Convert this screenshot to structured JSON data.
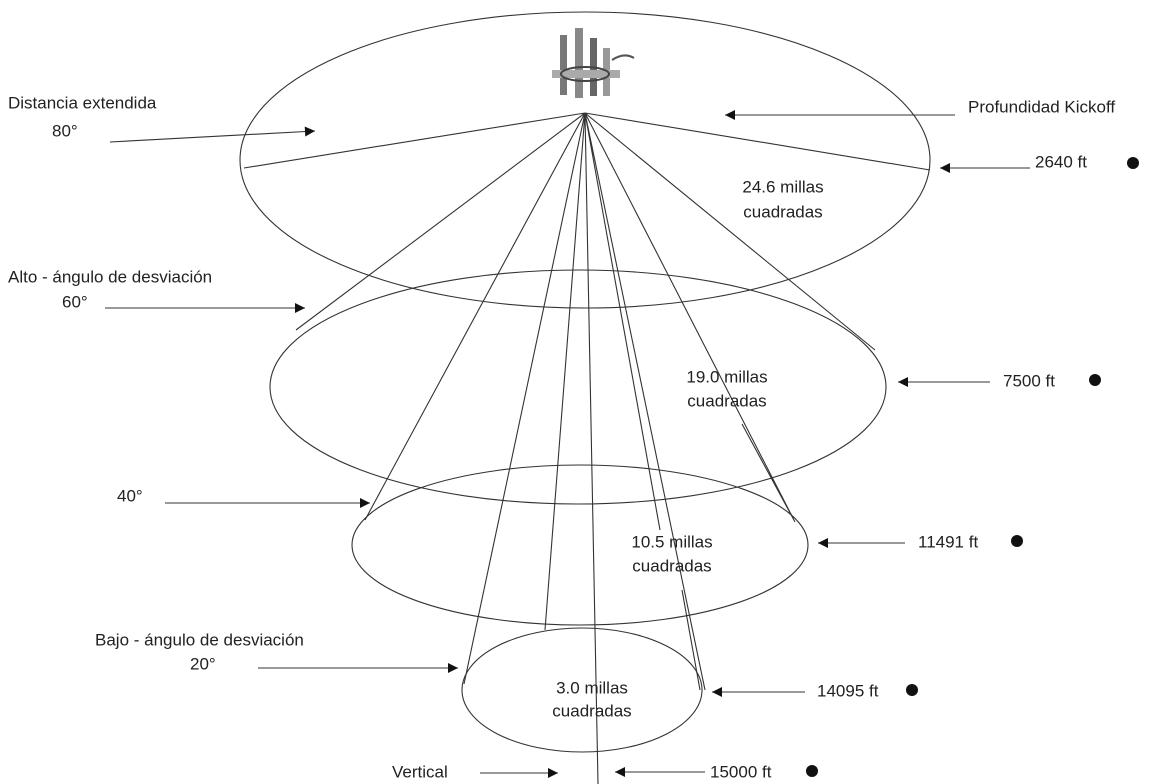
{
  "angles": [
    {
      "label": "Distancia extendida",
      "angle": "80°"
    },
    {
      "label": "Alto - ángulo de desviación",
      "angle": "60°"
    },
    {
      "angle": "40°"
    },
    {
      "label": "Bajo - ángulo de desviación",
      "angle": "20°"
    },
    {
      "label": "Vertical"
    }
  ],
  "kickoff": "Profundidad Kickoff",
  "depths": [
    "2640 ft",
    "7500 ft",
    "11491 ft",
    "14095 ft",
    "15000 ft"
  ],
  "areas": [
    {
      "line1": "24.6 millas",
      "line2": "cuadradas"
    },
    {
      "line1": "19.0 millas",
      "line2": "cuadradas"
    },
    {
      "line1": "10.5 millas",
      "line2": "cuadradas"
    },
    {
      "line1": "3.0 millas",
      "line2": "cuadradas"
    }
  ]
}
